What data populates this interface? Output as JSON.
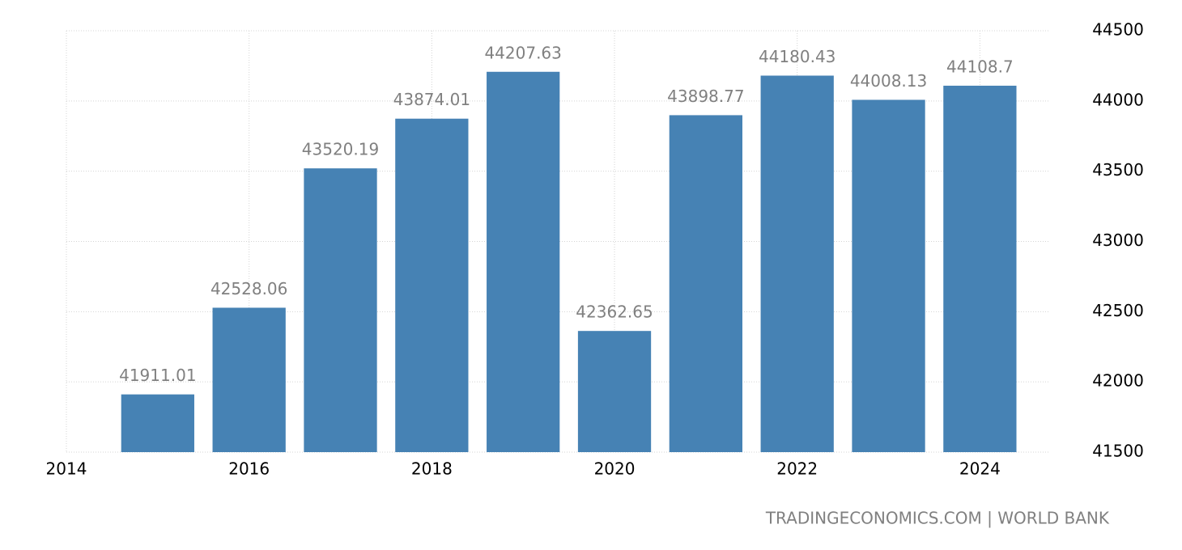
{
  "chart_data": {
    "type": "bar",
    "x": [
      2015,
      2016,
      2017,
      2018,
      2019,
      2020,
      2021,
      2022,
      2023,
      2024
    ],
    "values": [
      41911.01,
      42528.06,
      43520.19,
      43874.01,
      44207.63,
      42362.65,
      43898.77,
      44180.43,
      44008.13,
      44108.7
    ],
    "color": "#4682b4",
    "xlim": [
      2014,
      2024.75
    ],
    "xticks": [
      2014,
      2016,
      2018,
      2020,
      2022,
      2024
    ],
    "ylim": [
      41500,
      44500
    ],
    "yticks": [
      41500,
      42000,
      42500,
      43000,
      43500,
      44000,
      44500
    ],
    "grid": true,
    "source": "TRADINGECONOMICS.COM | WORLD BANK"
  }
}
